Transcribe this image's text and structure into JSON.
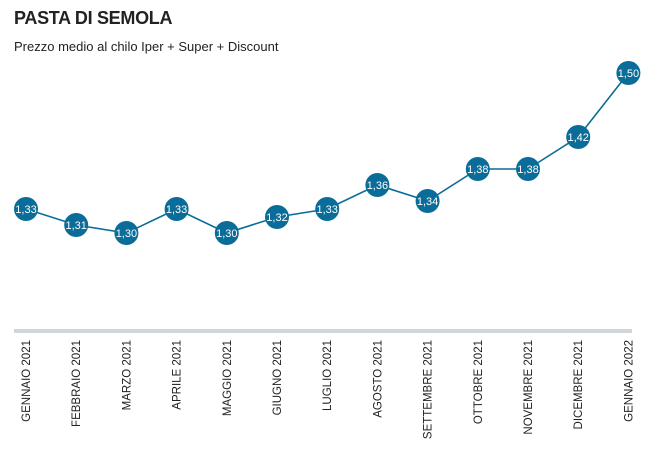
{
  "chart_data": {
    "type": "line",
    "title": "PASTA DI SEMOLA",
    "subtitle": "Prezzo medio al chilo Iper + Super + Discount",
    "categories": [
      "GENNAIO 2021",
      "FEBBRAIO 2021",
      "MARZO 2021",
      "APRILE 2021",
      "MAGGIO 2021",
      "GIUGNO 2021",
      "LUGLIO 2021",
      "AGOSTO 2021",
      "SETTEMBRE 2021",
      "OTTOBRE 2021",
      "NOVEMBRE 2021",
      "DICEMBRE 2021",
      "GENNAIO 2022"
    ],
    "values": [
      1.33,
      1.31,
      1.3,
      1.33,
      1.3,
      1.32,
      1.33,
      1.36,
      1.34,
      1.38,
      1.38,
      1.42,
      1.5
    ],
    "data_labels": [
      "1,33",
      "1,31",
      "1,30",
      "1,33",
      "1,30",
      "1,32",
      "1,33",
      "1,36",
      "1,34",
      "1,38",
      "1,38",
      "1,42",
      "1,50"
    ],
    "ylim": [
      1.25,
      1.52
    ],
    "grid": false,
    "colors": {
      "series": "#0a6c98",
      "axis": "#cfd6da",
      "label_text": "#ffffff"
    }
  }
}
